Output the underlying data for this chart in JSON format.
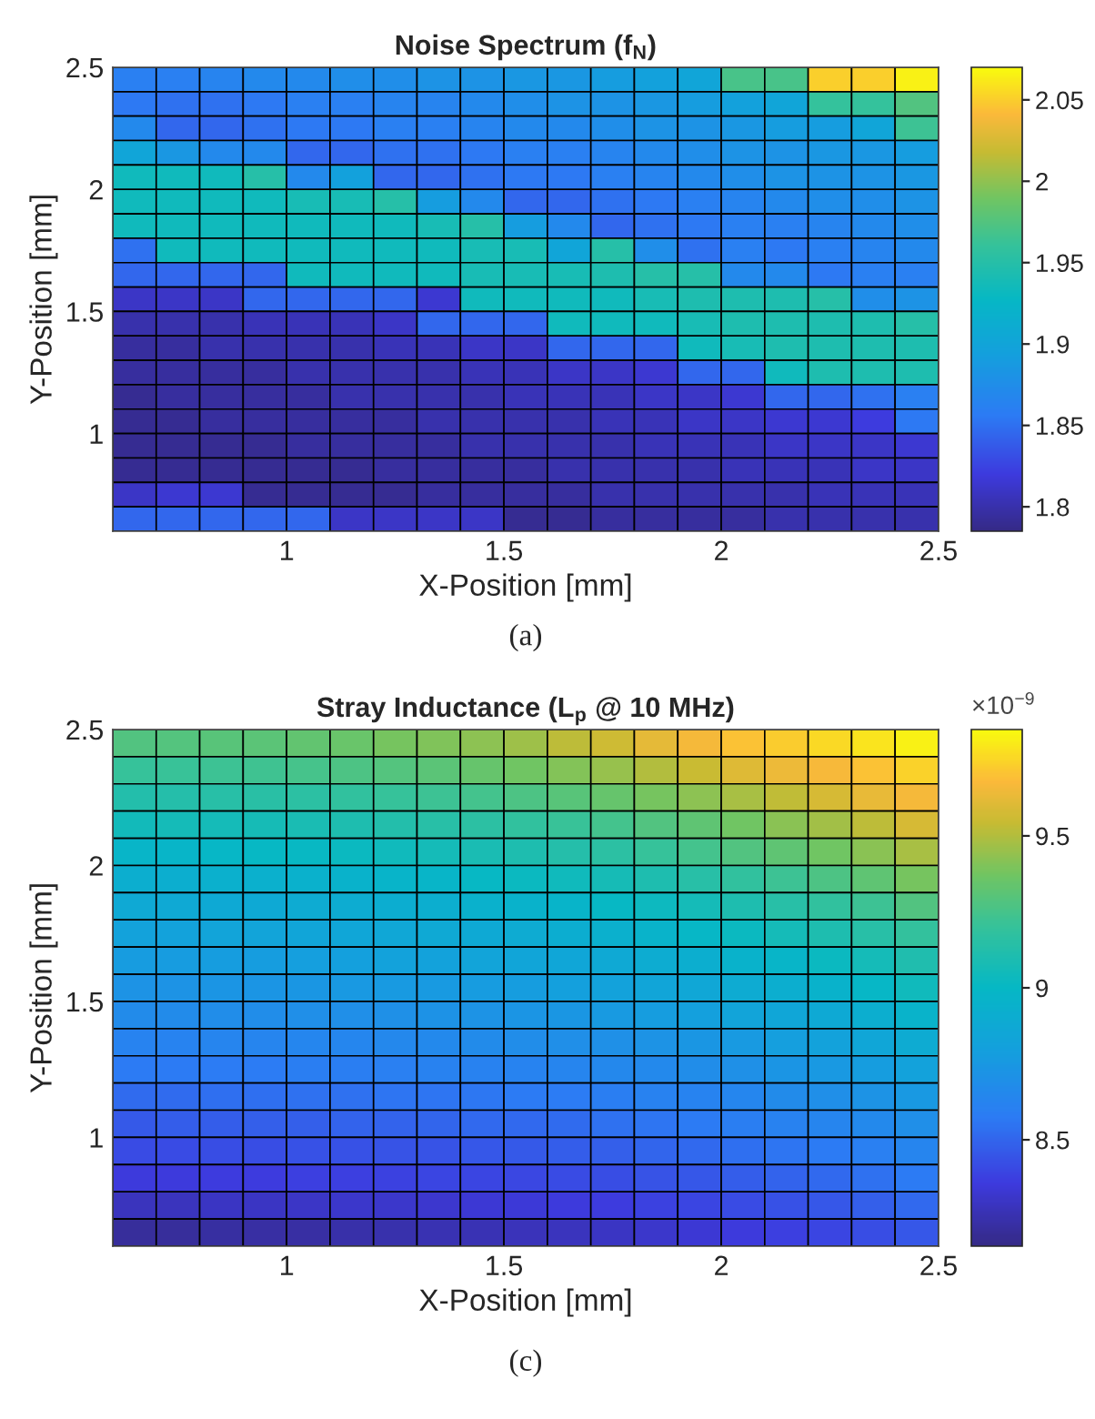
{
  "chart_data": [
    {
      "type": "heatmap",
      "title": "Noise Spectrum (f$_{N}$)",
      "xlabel": "X-Position [mm]",
      "ylabel": "Y-Position [mm]",
      "x": [
        0.65,
        0.75,
        0.85,
        0.95,
        1.05,
        1.15,
        1.25,
        1.35,
        1.45,
        1.55,
        1.65,
        1.75,
        1.85,
        1.95,
        2.05,
        2.15,
        2.25,
        2.35,
        2.45
      ],
      "y": [
        2.45,
        2.35,
        2.25,
        2.15,
        2.05,
        1.95,
        1.85,
        1.75,
        1.65,
        1.55,
        1.45,
        1.35,
        1.25,
        1.15,
        1.05,
        0.95,
        0.85,
        0.75,
        0.65
      ],
      "xlim": [
        0.6,
        2.5
      ],
      "ylim": [
        0.6,
        2.5
      ],
      "xticks": [
        1,
        1.5,
        2,
        2.5
      ],
      "yticks": [
        1,
        1.5,
        2,
        2.5
      ],
      "clim": [
        1.785,
        2.07
      ],
      "cticks": [
        1.8,
        1.85,
        1.9,
        1.95,
        2,
        2.05
      ],
      "cells": [
        [
          1.86,
          1.86,
          1.865,
          1.87,
          1.87,
          1.875,
          1.875,
          1.88,
          1.88,
          1.885,
          1.885,
          1.89,
          1.895,
          1.9,
          1.97,
          1.97,
          2.05,
          2.05,
          2.065
        ],
        [
          1.855,
          1.85,
          1.85,
          1.855,
          1.86,
          1.86,
          1.865,
          1.865,
          1.87,
          1.875,
          1.88,
          1.88,
          1.885,
          1.89,
          1.895,
          1.9,
          1.96,
          1.96,
          1.975
        ],
        [
          1.87,
          1.845,
          1.845,
          1.85,
          1.855,
          1.855,
          1.86,
          1.86,
          1.865,
          1.87,
          1.87,
          1.875,
          1.88,
          1.88,
          1.885,
          1.89,
          1.89,
          1.9,
          1.965
        ],
        [
          1.9,
          1.885,
          1.87,
          1.87,
          1.845,
          1.845,
          1.85,
          1.85,
          1.855,
          1.86,
          1.86,
          1.865,
          1.87,
          1.875,
          1.88,
          1.88,
          1.885,
          1.885,
          1.89
        ],
        [
          1.935,
          1.935,
          1.935,
          1.95,
          1.87,
          1.895,
          1.845,
          1.845,
          1.85,
          1.855,
          1.855,
          1.86,
          1.865,
          1.87,
          1.875,
          1.88,
          1.88,
          1.88,
          1.885
        ],
        [
          1.935,
          1.935,
          1.935,
          1.935,
          1.94,
          1.94,
          1.95,
          1.89,
          1.87,
          1.845,
          1.845,
          1.85,
          1.855,
          1.86,
          1.865,
          1.87,
          1.875,
          1.875,
          1.88
        ],
        [
          1.935,
          1.935,
          1.935,
          1.935,
          1.935,
          1.935,
          1.935,
          1.94,
          1.95,
          1.89,
          1.87,
          1.845,
          1.85,
          1.855,
          1.86,
          1.86,
          1.865,
          1.87,
          1.875
        ],
        [
          1.85,
          1.935,
          1.935,
          1.935,
          1.935,
          1.935,
          1.935,
          1.935,
          1.94,
          1.94,
          1.9,
          1.95,
          1.875,
          1.85,
          1.86,
          1.855,
          1.86,
          1.865,
          1.87
        ],
        [
          1.845,
          1.845,
          1.845,
          1.845,
          1.935,
          1.935,
          1.935,
          1.935,
          1.94,
          1.94,
          1.94,
          1.945,
          1.95,
          1.95,
          1.87,
          1.87,
          1.855,
          1.86,
          1.86
        ],
        [
          1.81,
          1.81,
          1.81,
          1.845,
          1.845,
          1.845,
          1.845,
          1.815,
          1.935,
          1.935,
          1.935,
          1.935,
          1.94,
          1.945,
          1.945,
          1.945,
          1.95,
          1.875,
          1.88
        ],
        [
          1.8,
          1.8,
          1.8,
          1.805,
          1.805,
          1.805,
          1.81,
          1.845,
          1.845,
          1.845,
          1.935,
          1.935,
          1.935,
          1.94,
          1.945,
          1.945,
          1.945,
          1.945,
          1.95
        ],
        [
          1.795,
          1.795,
          1.8,
          1.8,
          1.8,
          1.8,
          1.805,
          1.805,
          1.81,
          1.81,
          1.845,
          1.845,
          1.845,
          1.935,
          1.94,
          1.945,
          1.945,
          1.945,
          1.945
        ],
        [
          1.795,
          1.795,
          1.795,
          1.795,
          1.8,
          1.8,
          1.8,
          1.8,
          1.805,
          1.805,
          1.81,
          1.81,
          1.815,
          1.845,
          1.845,
          1.935,
          1.945,
          1.945,
          1.945
        ],
        [
          1.79,
          1.795,
          1.795,
          1.795,
          1.795,
          1.8,
          1.8,
          1.8,
          1.8,
          1.805,
          1.805,
          1.805,
          1.81,
          1.81,
          1.815,
          1.845,
          1.845,
          1.85,
          1.86
        ],
        [
          1.79,
          1.79,
          1.795,
          1.795,
          1.795,
          1.795,
          1.795,
          1.8,
          1.8,
          1.8,
          1.8,
          1.805,
          1.805,
          1.81,
          1.81,
          1.815,
          1.815,
          1.82,
          1.855
        ],
        [
          1.79,
          1.79,
          1.79,
          1.79,
          1.795,
          1.795,
          1.795,
          1.795,
          1.8,
          1.8,
          1.8,
          1.8,
          1.805,
          1.805,
          1.805,
          1.81,
          1.81,
          1.81,
          1.815
        ],
        [
          1.79,
          1.79,
          1.79,
          1.79,
          1.79,
          1.79,
          1.795,
          1.795,
          1.795,
          1.795,
          1.8,
          1.8,
          1.8,
          1.8,
          1.805,
          1.805,
          1.805,
          1.81,
          1.81
        ],
        [
          1.81,
          1.815,
          1.815,
          1.79,
          1.79,
          1.79,
          1.79,
          1.795,
          1.795,
          1.795,
          1.795,
          1.8,
          1.8,
          1.8,
          1.8,
          1.8,
          1.805,
          1.805,
          1.805
        ],
        [
          1.845,
          1.845,
          1.845,
          1.845,
          1.845,
          1.81,
          1.81,
          1.81,
          1.81,
          1.79,
          1.79,
          1.795,
          1.795,
          1.795,
          1.795,
          1.8,
          1.8,
          1.8,
          1.8
        ]
      ],
      "annotations": [
        "(a)"
      ]
    },
    {
      "type": "heatmap",
      "title": "Stray Inductance (L$_{p}$ @ 10 MHz)",
      "xlabel": "X-Position [mm]",
      "ylabel": "Y-Position [mm]",
      "clabel": "×10$^{−9}$",
      "x": [
        0.65,
        0.75,
        0.85,
        0.95,
        1.05,
        1.15,
        1.25,
        1.35,
        1.45,
        1.55,
        1.65,
        1.75,
        1.85,
        1.95,
        2.05,
        2.15,
        2.25,
        2.35,
        2.45
      ],
      "y": [
        2.45,
        2.35,
        2.25,
        2.15,
        2.05,
        1.95,
        1.85,
        1.75,
        1.65,
        1.55,
        1.45,
        1.35,
        1.25,
        1.15,
        1.05,
        0.95,
        0.85,
        0.75,
        0.65
      ],
      "xlim": [
        0.6,
        2.5
      ],
      "ylim": [
        0.6,
        2.5
      ],
      "xticks": [
        1,
        1.5,
        2,
        2.5
      ],
      "yticks": [
        1,
        1.5,
        2,
        2.5
      ],
      "clim": [
        8.15,
        9.85
      ],
      "cticks": [
        8.5,
        9,
        9.5
      ],
      "cells": [
        [
          9.28,
          9.29,
          9.3,
          9.31,
          9.33,
          9.35,
          9.38,
          9.4,
          9.43,
          9.46,
          9.52,
          9.56,
          9.62,
          9.66,
          9.7,
          9.73,
          9.76,
          9.79,
          9.82
        ],
        [
          9.2,
          9.21,
          9.22,
          9.23,
          9.25,
          9.27,
          9.29,
          9.31,
          9.34,
          9.37,
          9.41,
          9.45,
          9.5,
          9.55,
          9.6,
          9.64,
          9.67,
          9.7,
          9.74
        ],
        [
          9.12,
          9.13,
          9.14,
          9.15,
          9.16,
          9.18,
          9.2,
          9.22,
          9.24,
          9.27,
          9.3,
          9.34,
          9.38,
          9.43,
          9.48,
          9.53,
          9.58,
          9.63,
          9.66
        ],
        [
          9.05,
          9.06,
          9.06,
          9.07,
          9.08,
          9.1,
          9.12,
          9.14,
          9.16,
          9.18,
          9.21,
          9.24,
          9.28,
          9.32,
          9.37,
          9.42,
          9.47,
          9.52,
          9.58
        ],
        [
          8.98,
          8.98,
          8.99,
          9.0,
          9.01,
          9.02,
          9.04,
          9.06,
          9.08,
          9.1,
          9.13,
          9.16,
          9.2,
          9.24,
          9.28,
          9.32,
          9.37,
          9.42,
          9.48
        ],
        [
          8.92,
          8.92,
          8.93,
          8.93,
          8.94,
          8.95,
          8.97,
          8.98,
          9.0,
          9.02,
          9.04,
          9.07,
          9.1,
          9.14,
          9.18,
          9.22,
          9.27,
          9.32,
          9.38
        ],
        [
          8.87,
          8.87,
          8.88,
          8.88,
          8.89,
          8.9,
          8.91,
          8.92,
          8.94,
          8.95,
          8.97,
          9.0,
          9.03,
          9.06,
          9.1,
          9.14,
          9.18,
          9.22,
          9.28
        ],
        [
          8.82,
          8.82,
          8.83,
          8.83,
          8.84,
          8.85,
          8.86,
          8.87,
          8.88,
          8.89,
          8.91,
          8.93,
          8.96,
          8.99,
          9.02,
          9.06,
          9.1,
          9.14,
          9.19
        ],
        [
          8.77,
          8.77,
          8.78,
          8.78,
          8.79,
          8.8,
          8.81,
          8.82,
          8.83,
          8.84,
          8.85,
          8.87,
          8.9,
          8.92,
          8.95,
          8.98,
          9.02,
          9.06,
          9.11
        ],
        [
          8.72,
          8.72,
          8.73,
          8.73,
          8.74,
          8.75,
          8.76,
          8.76,
          8.77,
          8.78,
          8.8,
          8.82,
          8.84,
          8.86,
          8.89,
          8.92,
          8.95,
          8.99,
          9.04
        ],
        [
          8.67,
          8.67,
          8.68,
          8.68,
          8.69,
          8.69,
          8.7,
          8.71,
          8.72,
          8.73,
          8.74,
          8.76,
          8.78,
          8.8,
          8.83,
          8.85,
          8.88,
          8.92,
          8.96
        ],
        [
          8.62,
          8.62,
          8.63,
          8.63,
          8.64,
          8.64,
          8.65,
          8.66,
          8.67,
          8.68,
          8.69,
          8.7,
          8.72,
          8.74,
          8.76,
          8.79,
          8.82,
          8.85,
          8.89
        ],
        [
          8.57,
          8.57,
          8.58,
          8.58,
          8.59,
          8.59,
          8.6,
          8.61,
          8.61,
          8.62,
          8.63,
          8.65,
          8.66,
          8.68,
          8.7,
          8.73,
          8.75,
          8.78,
          8.82
        ],
        [
          8.52,
          8.52,
          8.53,
          8.53,
          8.54,
          8.54,
          8.55,
          8.55,
          8.56,
          8.57,
          8.58,
          8.59,
          8.61,
          8.62,
          8.64,
          8.67,
          8.69,
          8.72,
          8.75
        ],
        [
          8.46,
          8.47,
          8.47,
          8.48,
          8.48,
          8.49,
          8.49,
          8.5,
          8.51,
          8.51,
          8.52,
          8.54,
          8.55,
          8.57,
          8.59,
          8.61,
          8.63,
          8.66,
          8.69
        ],
        [
          8.41,
          8.41,
          8.42,
          8.42,
          8.43,
          8.43,
          8.44,
          8.44,
          8.45,
          8.46,
          8.47,
          8.48,
          8.5,
          8.51,
          8.53,
          8.55,
          8.57,
          8.6,
          8.63
        ],
        [
          8.35,
          8.35,
          8.36,
          8.36,
          8.37,
          8.37,
          8.38,
          8.39,
          8.39,
          8.4,
          8.41,
          8.42,
          8.44,
          8.45,
          8.47,
          8.49,
          8.51,
          8.54,
          8.57
        ],
        [
          8.28,
          8.28,
          8.29,
          8.29,
          8.3,
          8.31,
          8.31,
          8.32,
          8.33,
          8.34,
          8.35,
          8.36,
          8.38,
          8.39,
          8.41,
          8.43,
          8.45,
          8.48,
          8.51
        ],
        [
          8.2,
          8.2,
          8.21,
          8.22,
          8.22,
          8.23,
          8.24,
          8.25,
          8.26,
          8.27,
          8.28,
          8.29,
          8.31,
          8.33,
          8.35,
          8.37,
          8.39,
          8.42,
          8.45
        ]
      ],
      "annotations": [
        "(c)"
      ]
    }
  ]
}
